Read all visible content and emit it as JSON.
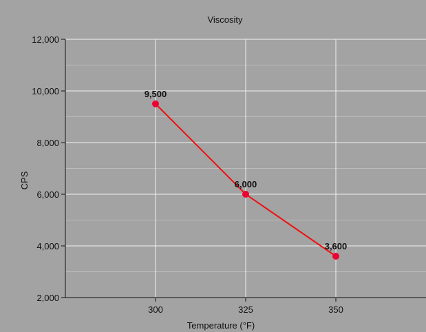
{
  "chart_data": {
    "type": "line",
    "title": "Viscosity",
    "xlabel": "Temperature (°F)",
    "ylabel": "CPS",
    "x": [
      300,
      325,
      350
    ],
    "x_tick_labels": [
      "300",
      "325",
      "350"
    ],
    "xlim": [
      275,
      375
    ],
    "ylim": [
      2000,
      12000
    ],
    "y_ticks": [
      2000,
      4000,
      6000,
      8000,
      10000,
      12000
    ],
    "y_tick_labels": [
      "2,000",
      "4,000",
      "6,000",
      "8,000",
      "10,000",
      "12,000"
    ],
    "grid": true,
    "series": [
      {
        "values": [
          9500,
          6000,
          3600
        ],
        "data_labels": [
          "9,500",
          "6,000",
          "3,600"
        ],
        "color": "#ee1111",
        "marker_color": "#ee0033"
      }
    ],
    "colors": {
      "background": "#a3a3a3",
      "grid_major": "#f2f2f2",
      "grid_minor": "#bcbcbc",
      "text": "#111111"
    }
  }
}
